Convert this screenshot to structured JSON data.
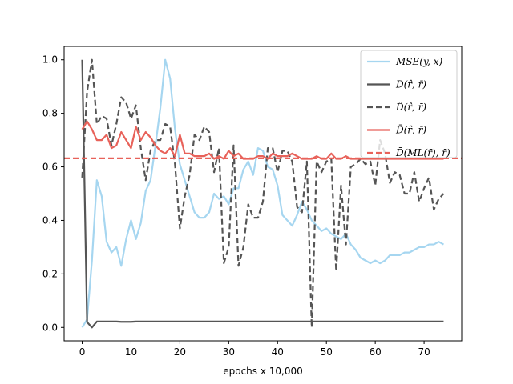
{
  "chart_data": {
    "type": "line",
    "title": "",
    "xlabel": "epochs x 10,000",
    "ylabel": "",
    "xlim": [
      -3.7,
      77.7
    ],
    "ylim": [
      -0.05,
      1.05
    ],
    "xticks": [
      0,
      10,
      20,
      30,
      40,
      50,
      60,
      70
    ],
    "yticks": [
      0.0,
      0.2,
      0.4,
      0.6,
      0.8,
      1.0
    ],
    "xtick_labels": [
      "0",
      "10",
      "20",
      "30",
      "40",
      "50",
      "60",
      "70"
    ],
    "ytick_labels": [
      "0.0",
      "0.2",
      "0.4",
      "0.6",
      "0.8",
      "1.0"
    ],
    "grid": false,
    "legend_position": "top-right",
    "series": [
      {
        "name": "MSE(y, x)",
        "color": "#a6d6f0",
        "style": "solid",
        "values": [
          0.0,
          0.03,
          0.25,
          0.55,
          0.49,
          0.32,
          0.28,
          0.3,
          0.23,
          0.33,
          0.4,
          0.33,
          0.39,
          0.51,
          0.55,
          0.68,
          0.82,
          1.0,
          0.93,
          0.74,
          0.61,
          0.55,
          0.49,
          0.43,
          0.41,
          0.41,
          0.43,
          0.5,
          0.48,
          0.49,
          0.46,
          0.52,
          0.52,
          0.59,
          0.62,
          0.57,
          0.67,
          0.66,
          0.6,
          0.59,
          0.53,
          0.42,
          0.4,
          0.38,
          0.42,
          0.47,
          0.44,
          0.4,
          0.38,
          0.36,
          0.37,
          0.35,
          0.34,
          0.33,
          0.35,
          0.31,
          0.29,
          0.26,
          0.25,
          0.24,
          0.25,
          0.24,
          0.25,
          0.27,
          0.27,
          0.27,
          0.28,
          0.28,
          0.29,
          0.3,
          0.3,
          0.31,
          0.31,
          0.32,
          0.31
        ]
      },
      {
        "name": "D(r̂, r̄)",
        "color": "#555555",
        "style": "solid",
        "values": [
          1.0,
          0.02,
          0.0,
          0.022,
          0.022,
          0.022,
          0.022,
          0.022,
          0.021,
          0.021,
          0.021,
          0.022,
          0.022,
          0.022,
          0.022,
          0.022,
          0.022,
          0.022,
          0.022,
          0.022,
          0.022,
          0.022,
          0.022,
          0.022,
          0.022,
          0.022,
          0.022,
          0.022,
          0.022,
          0.022,
          0.022,
          0.022,
          0.022,
          0.022,
          0.022,
          0.022,
          0.022,
          0.022,
          0.022,
          0.022,
          0.022,
          0.022,
          0.022,
          0.022,
          0.022,
          0.022,
          0.022,
          0.022,
          0.022,
          0.022,
          0.022,
          0.022,
          0.022,
          0.022,
          0.022,
          0.022,
          0.022,
          0.022,
          0.022,
          0.022,
          0.022,
          0.022,
          0.022,
          0.022,
          0.022,
          0.022,
          0.022,
          0.022,
          0.022,
          0.022,
          0.022,
          0.022,
          0.022,
          0.022,
          0.022
        ]
      },
      {
        "name": "D̂(r̂, r̄)",
        "color": "#555555",
        "style": "dashed",
        "values": [
          0.56,
          0.88,
          1.0,
          0.76,
          0.79,
          0.78,
          0.68,
          0.76,
          0.86,
          0.84,
          0.78,
          0.83,
          0.67,
          0.55,
          0.66,
          0.7,
          0.7,
          0.76,
          0.75,
          0.61,
          0.37,
          0.49,
          0.57,
          0.72,
          0.7,
          0.75,
          0.73,
          0.58,
          0.67,
          0.24,
          0.3,
          0.68,
          0.23,
          0.3,
          0.46,
          0.41,
          0.41,
          0.47,
          0.67,
          0.67,
          0.58,
          0.66,
          0.66,
          0.62,
          0.45,
          0.43,
          0.62,
          0.0,
          0.62,
          0.58,
          0.62,
          0.63,
          0.21,
          0.53,
          0.31,
          0.6,
          0.61,
          0.63,
          0.61,
          0.62,
          0.53,
          0.7,
          0.65,
          0.54,
          0.58,
          0.57,
          0.5,
          0.5,
          0.58,
          0.47,
          0.52,
          0.56,
          0.44,
          0.48,
          0.5
        ]
      },
      {
        "name": "D̄(r̂, r̄)",
        "color": "#e8625a",
        "style": "solid",
        "values": [
          0.74,
          0.77,
          0.74,
          0.7,
          0.7,
          0.72,
          0.67,
          0.68,
          0.73,
          0.7,
          0.67,
          0.75,
          0.7,
          0.73,
          0.71,
          0.68,
          0.66,
          0.65,
          0.67,
          0.64,
          0.72,
          0.65,
          0.65,
          0.64,
          0.64,
          0.64,
          0.65,
          0.63,
          0.64,
          0.63,
          0.66,
          0.64,
          0.65,
          0.63,
          0.63,
          0.63,
          0.64,
          0.64,
          0.63,
          0.65,
          0.64,
          0.64,
          0.64,
          0.65,
          0.64,
          0.63,
          0.63,
          0.63,
          0.64,
          0.63,
          0.63,
          0.65,
          0.63,
          0.63,
          0.64,
          0.63,
          0.63,
          0.63,
          0.63,
          0.63,
          0.63,
          0.63,
          0.63,
          0.63,
          0.63,
          0.63,
          0.63,
          0.63,
          0.63,
          0.63,
          0.63,
          0.63,
          0.63,
          0.63,
          0.63
        ]
      },
      {
        "name": "D̄(ML(r̄), r̄)",
        "color": "#e8625a",
        "style": "dashed",
        "values": [
          0.632,
          0.632
        ]
      }
    ]
  }
}
